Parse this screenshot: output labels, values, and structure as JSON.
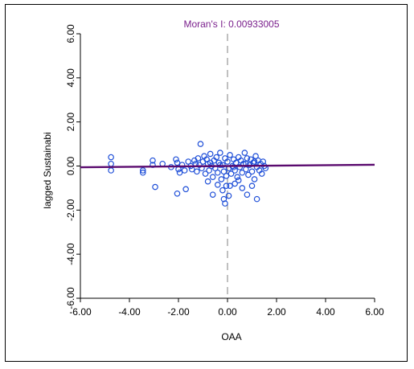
{
  "chart_data": {
    "type": "scatter",
    "title": "Moran's I: 0.00933005",
    "xlabel": "OAA",
    "ylabel": "lagged Sustainabi",
    "xlim": [
      -6,
      6
    ],
    "ylim": [
      -6,
      6
    ],
    "xticks": [
      "-6.00",
      "-4.00",
      "-2.00",
      "0.00",
      "2.00",
      "4.00",
      "6.00"
    ],
    "yticks": [
      "-6.00",
      "-4.00",
      "-2.00",
      "0.00",
      "2.00",
      "4.00",
      "6.00"
    ],
    "colors": {
      "points": "#1f4fd8",
      "regression": "#5a0a6e",
      "title": "#7a1f8c",
      "zero_line": "#808080"
    },
    "regression": {
      "slope": 0.00933005,
      "intercept": 0.0
    },
    "points": [
      [
        -4.75,
        0.4
      ],
      [
        -4.75,
        0.1
      ],
      [
        -4.75,
        -0.2
      ],
      [
        -3.45,
        -0.2
      ],
      [
        -3.45,
        -0.3
      ],
      [
        -3.05,
        0.25
      ],
      [
        -3.05,
        0.05
      ],
      [
        -2.95,
        -0.95
      ],
      [
        -2.65,
        0.1
      ],
      [
        -2.3,
        -0.05
      ],
      [
        -2.1,
        0.3
      ],
      [
        -2.05,
        0.15
      ],
      [
        -2.0,
        -0.15
      ],
      [
        -1.95,
        -0.3
      ],
      [
        -1.85,
        0.05
      ],
      [
        -1.75,
        -0.2
      ],
      [
        -1.7,
        -1.05
      ],
      [
        -2.05,
        -1.25
      ],
      [
        -1.6,
        0.2
      ],
      [
        -1.5,
        0.0
      ],
      [
        -1.45,
        -0.15
      ],
      [
        -1.35,
        0.25
      ],
      [
        -1.3,
        0.1
      ],
      [
        -1.25,
        -0.25
      ],
      [
        -1.2,
        0.35
      ],
      [
        -1.15,
        0.05
      ],
      [
        -1.1,
        1.0
      ],
      [
        -1.05,
        -0.1
      ],
      [
        -1.0,
        0.2
      ],
      [
        -0.95,
        0.45
      ],
      [
        -0.9,
        -0.35
      ],
      [
        -0.85,
        0.3
      ],
      [
        -0.8,
        0.1
      ],
      [
        -0.75,
        -0.2
      ],
      [
        -0.7,
        0.55
      ],
      [
        -0.65,
        0.0
      ],
      [
        -0.6,
        -0.5
      ],
      [
        -0.55,
        0.25
      ],
      [
        -0.5,
        -0.1
      ],
      [
        -0.45,
        0.4
      ],
      [
        -0.4,
        -0.3
      ],
      [
        -0.35,
        0.15
      ],
      [
        -0.3,
        0.6
      ],
      [
        -0.25,
        -0.6
      ],
      [
        -0.2,
        0.05
      ],
      [
        -0.15,
        -0.25
      ],
      [
        -0.1,
        0.35
      ],
      [
        -0.05,
        -0.45
      ],
      [
        0.0,
        0.2
      ],
      [
        0.05,
        -0.1
      ],
      [
        0.1,
        0.5
      ],
      [
        0.15,
        -0.35
      ],
      [
        0.2,
        0.0
      ],
      [
        0.25,
        0.3
      ],
      [
        0.3,
        -0.2
      ],
      [
        0.35,
        0.15
      ],
      [
        0.4,
        -0.5
      ],
      [
        0.45,
        0.4
      ],
      [
        0.5,
        -0.05
      ],
      [
        0.55,
        0.25
      ],
      [
        0.6,
        -0.3
      ],
      [
        0.65,
        0.1
      ],
      [
        0.7,
        0.6
      ],
      [
        0.75,
        -0.15
      ],
      [
        0.8,
        0.35
      ],
      [
        0.85,
        -0.4
      ],
      [
        0.9,
        0.05
      ],
      [
        0.95,
        0.3
      ],
      [
        1.0,
        -0.25
      ],
      [
        1.05,
        0.15
      ],
      [
        1.1,
        -0.6
      ],
      [
        1.15,
        0.45
      ],
      [
        1.2,
        -0.05
      ],
      [
        1.25,
        0.25
      ],
      [
        1.3,
        -0.2
      ],
      [
        1.35,
        0.1
      ],
      [
        1.4,
        -0.35
      ],
      [
        1.45,
        0.2
      ],
      [
        1.5,
        0.0
      ],
      [
        1.55,
        -0.1
      ],
      [
        -0.6,
        -1.3
      ],
      [
        -0.2,
        -1.1
      ],
      [
        -0.15,
        -1.5
      ],
      [
        -0.1,
        -1.7
      ],
      [
        0.05,
        -1.35
      ],
      [
        0.1,
        -0.9
      ],
      [
        -0.4,
        -0.85
      ],
      [
        0.3,
        -0.8
      ],
      [
        0.6,
        -1.0
      ],
      [
        0.8,
        -1.3
      ],
      [
        1.2,
        -1.5
      ],
      [
        1.0,
        -0.9
      ],
      [
        -0.8,
        -0.7
      ],
      [
        0.45,
        -0.65
      ],
      [
        -0.05,
        -0.9
      ],
      [
        -0.3,
        0.05
      ],
      [
        0.25,
        -0.05
      ],
      [
        0.75,
        0.1
      ],
      [
        -0.7,
        0.15
      ],
      [
        1.1,
        0.2
      ]
    ]
  }
}
